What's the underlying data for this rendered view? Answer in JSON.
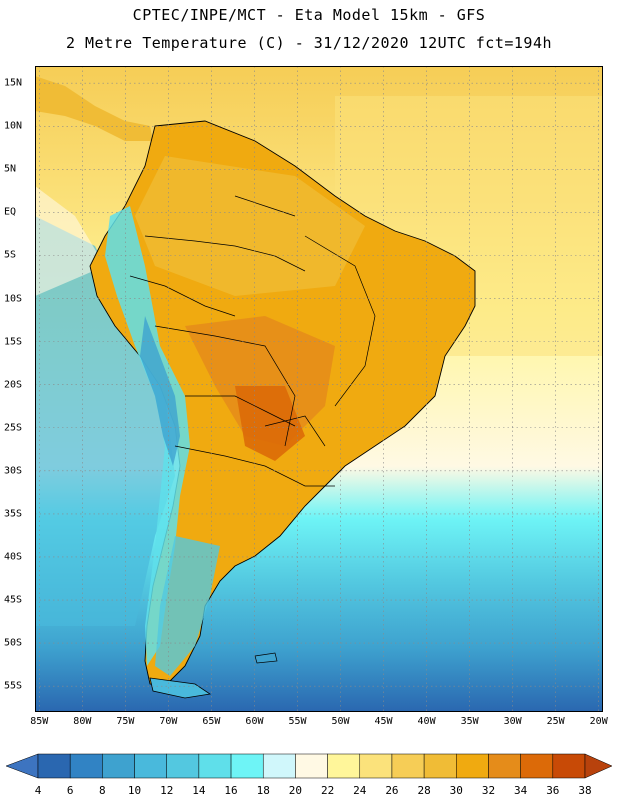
{
  "header": {
    "line1": "CPTEC/INPE/MCT -  Eta Model 15km - GFS",
    "line2": "2 Metre Temperature (C) - 31/12/2020 12UTC fct=194h"
  },
  "map": {
    "region": "South America",
    "lat_labels": [
      "15N",
      "10N",
      "5N",
      "EQ",
      "5S",
      "10S",
      "15S",
      "20S",
      "25S",
      "30S",
      "35S",
      "40S",
      "45S",
      "50S",
      "55S"
    ],
    "lat_values": [
      15,
      10,
      5,
      0,
      -5,
      -10,
      -15,
      -20,
      -25,
      -30,
      -35,
      -40,
      -45,
      -50,
      -55
    ],
    "lon_labels": [
      "85W",
      "80W",
      "75W",
      "70W",
      "65W",
      "60W",
      "55W",
      "50W",
      "45W",
      "40W",
      "35W",
      "30W",
      "25W",
      "20W"
    ],
    "lon_values": [
      -85,
      -80,
      -75,
      -70,
      -65,
      -60,
      -55,
      -50,
      -45,
      -40,
      -35,
      -30,
      -25,
      -20
    ],
    "lon_range": [
      -85.5,
      -19.5
    ],
    "lat_range": [
      17,
      -58
    ]
  },
  "colorbar": {
    "levels": [
      "4",
      "6",
      "8",
      "10",
      "12",
      "14",
      "16",
      "18",
      "20",
      "22",
      "24",
      "26",
      "28",
      "30",
      "32",
      "34",
      "36",
      "38"
    ],
    "colors": [
      "#2a67b0",
      "#3183c4",
      "#3ea2cf",
      "#49b9dc",
      "#53c8e0",
      "#5fdfea",
      "#6ef4f6",
      "#d0f7fb",
      "#fff9e4",
      "#fff69a",
      "#fbe27b",
      "#f6cd56",
      "#f0bc36",
      "#f0aa10",
      "#e58c1a",
      "#dc6a08",
      "#c84a06"
    ],
    "low_color": "#3d74c0",
    "high_color": "#b8420c"
  }
}
